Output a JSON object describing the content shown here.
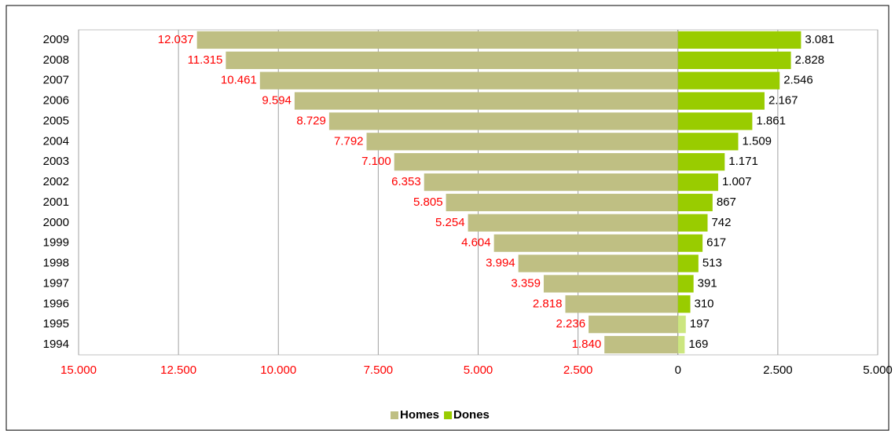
{
  "chart_data": {
    "type": "pyramid",
    "categories": [
      "2009",
      "2008",
      "2007",
      "2006",
      "2005",
      "2004",
      "2003",
      "2002",
      "2001",
      "2000",
      "1999",
      "1998",
      "1997",
      "1996",
      "1995",
      "1994"
    ],
    "series": [
      {
        "name": "Homes",
        "color": "#bfbf83",
        "side": "left",
        "label_color": "#ff0000",
        "values": [
          12037,
          11315,
          10461,
          9594,
          8729,
          7792,
          7100,
          6353,
          5805,
          5254,
          4604,
          3994,
          3359,
          2818,
          2236,
          1840
        ],
        "value_labels": [
          "12.037",
          "11.315",
          "10.461",
          "9.594",
          "8.729",
          "7.792",
          "7.100",
          "6.353",
          "5.805",
          "5.254",
          "4.604",
          "3.994",
          "3.359",
          "2.818",
          "2.236",
          "1.840"
        ]
      },
      {
        "name": "Dones",
        "color": "#99cc00",
        "side": "right",
        "label_color": "#000000",
        "colors": [
          "#99cc00",
          "#99cc00",
          "#99cc00",
          "#99cc00",
          "#99cc00",
          "#99cc00",
          "#99cc00",
          "#99cc00",
          "#99cc00",
          "#99cc00",
          "#99cc00",
          "#99cc00",
          "#99cc00",
          "#99cc00",
          "#cce67f",
          "#cce67f"
        ],
        "values": [
          3081,
          2828,
          2546,
          2167,
          1861,
          1509,
          1171,
          1007,
          867,
          742,
          617,
          513,
          391,
          310,
          197,
          169
        ],
        "value_labels": [
          "3.081",
          "2.828",
          "2.546",
          "2.167",
          "1.861",
          "1.509",
          "1.171",
          "1.007",
          "867",
          "742",
          "617",
          "513",
          "391",
          "310",
          "197",
          "169"
        ]
      }
    ],
    "xlim": [
      -15000,
      5000
    ],
    "xticks": [
      {
        "value": -15000,
        "label": "15.000"
      },
      {
        "value": -12500,
        "label": "12.500"
      },
      {
        "value": -10000,
        "label": "10.000"
      },
      {
        "value": -7500,
        "label": "7.500"
      },
      {
        "value": -5000,
        "label": "5.000"
      },
      {
        "value": -2500,
        "label": "2.500"
      },
      0,
      {
        "value": 2500,
        "label": "2.500"
      },
      {
        "value": 5000,
        "label": "5.000"
      }
    ],
    "grid": true,
    "legend": "bottom"
  }
}
